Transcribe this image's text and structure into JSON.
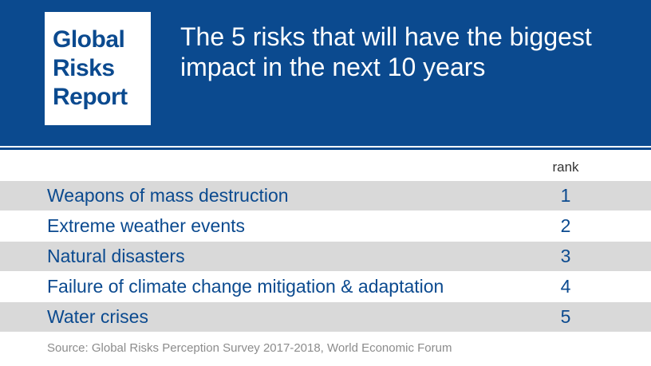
{
  "logo": {
    "lines": [
      "Global",
      "Risks",
      "Report"
    ]
  },
  "title": "The 5 risks that will have the biggest impact in the next 10 years",
  "colors": {
    "brand_blue": "#0b4a8f",
    "row_shade": "#d9d9d9",
    "source_gray": "#8c8c8c"
  },
  "chart_data": {
    "type": "table",
    "title": "The 5 risks that will have the biggest impact in the next 10 years",
    "columns": [
      "",
      "rank"
    ],
    "rows": [
      {
        "risk": "Weapons of mass destruction",
        "rank": "1"
      },
      {
        "risk": "Extreme weather events",
        "rank": "2"
      },
      {
        "risk": "Natural disasters",
        "rank": "3"
      },
      {
        "risk": "Failure of climate change mitigation & adaptation",
        "rank": "4"
      },
      {
        "risk": "Water crises",
        "rank": "5"
      }
    ],
    "source": "Source: Global Risks Perception Survey 2017-2018, World Economic Forum"
  }
}
